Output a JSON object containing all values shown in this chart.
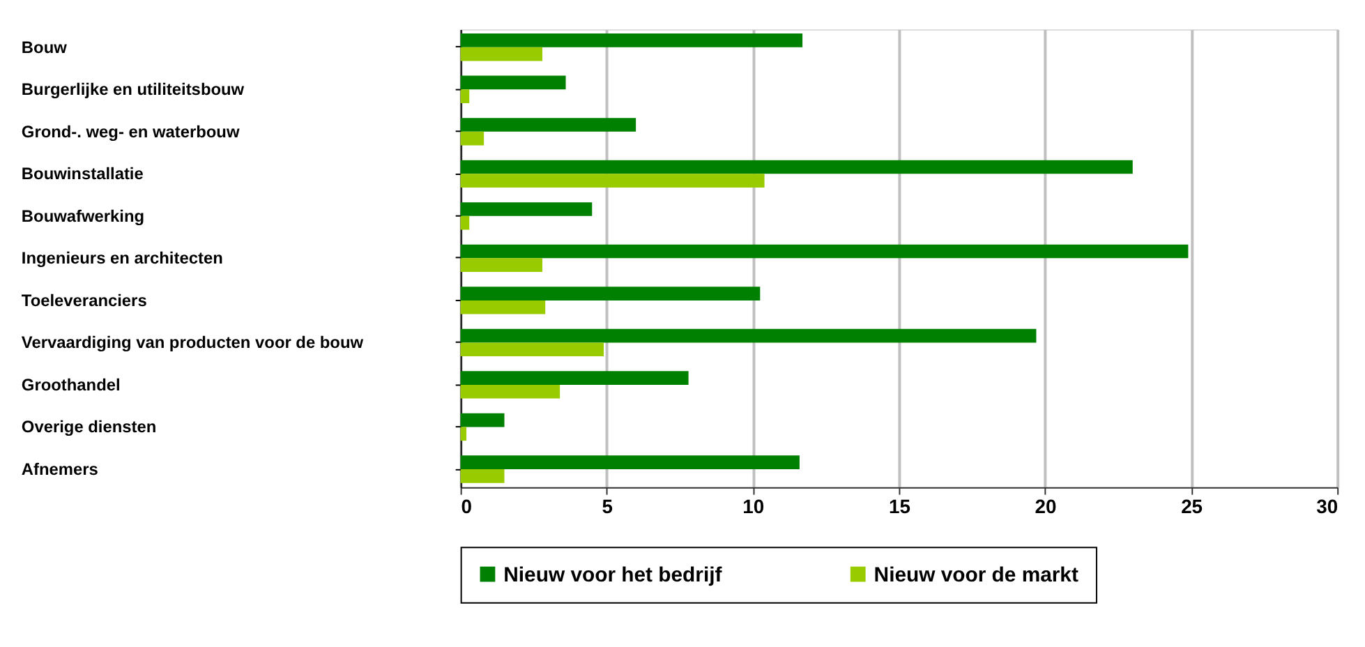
{
  "chart_data": {
    "type": "bar",
    "orientation": "horizontal",
    "categories": [
      "Bouw",
      "Burgerlijke en utiliteitsbouw",
      "Grond-. weg- en waterbouw",
      "Bouwinstallatie",
      "Bouwafwerking",
      "Ingenieurs en architecten",
      "Toeleveranciers",
      "Vervaardiging van producten voor de bouw",
      "Groothandel",
      "Overige diensten",
      "Afnemers"
    ],
    "series": [
      {
        "name": "Nieuw voor het bedrijf",
        "color": "#008000",
        "values": [
          11.7,
          3.6,
          6.0,
          23.0,
          4.5,
          24.9,
          10.25,
          19.7,
          7.8,
          1.5,
          11.6
        ]
      },
      {
        "name": "Nieuw voor de markt",
        "color": "#99cc00",
        "values": [
          2.8,
          0.3,
          0.8,
          10.4,
          0.3,
          2.8,
          2.9,
          4.9,
          3.4,
          0.2,
          1.5
        ]
      }
    ],
    "xlim": [
      0,
      30
    ],
    "xticks": [
      0,
      5,
      10,
      15,
      20,
      25,
      30
    ],
    "grid": "x",
    "legend": "bottom"
  }
}
